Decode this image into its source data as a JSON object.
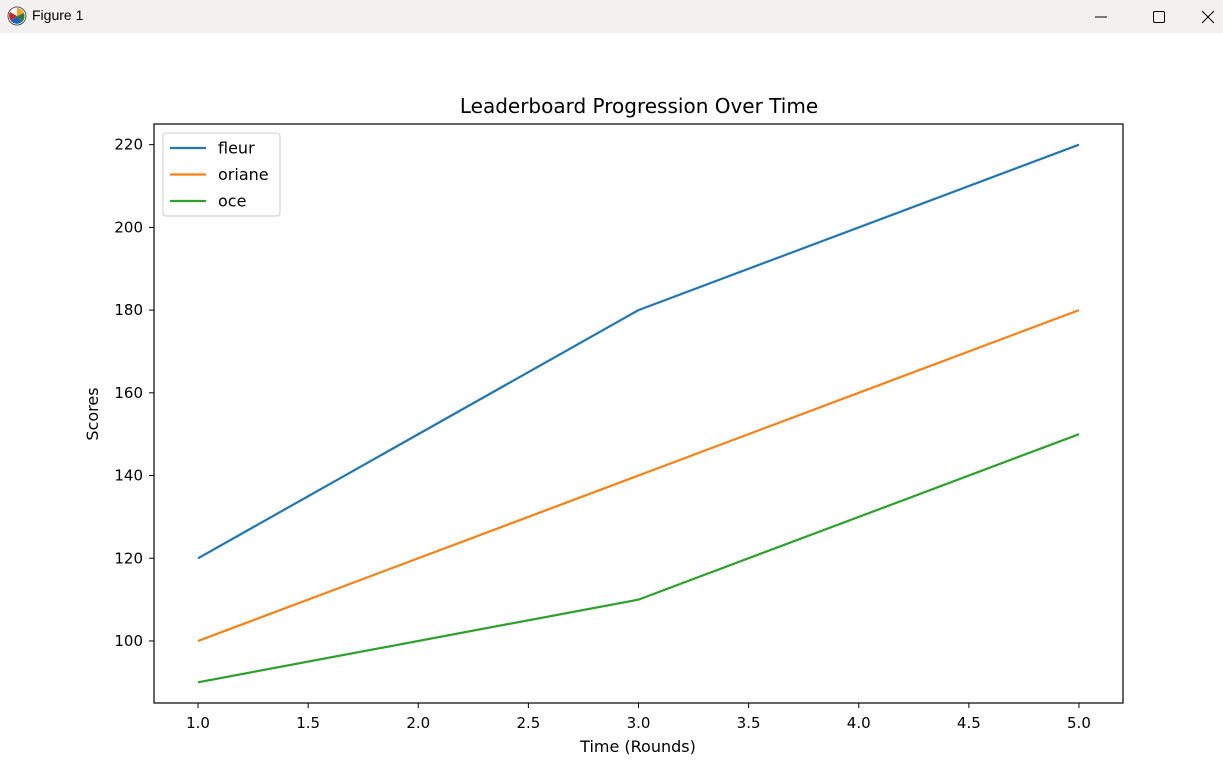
{
  "window": {
    "title": "Figure 1",
    "icons": {
      "app": "matplotlib-icon",
      "minimize": "minimize-icon",
      "maximize": "maximize-icon",
      "close": "close-icon"
    }
  },
  "chart_data": {
    "type": "line",
    "title": "Leaderboard Progression Over Time",
    "xlabel": "Time (Rounds)",
    "ylabel": "Scores",
    "x": [
      1,
      3,
      5
    ],
    "xlim": [
      0.8,
      5.2
    ],
    "ylim": [
      85,
      225
    ],
    "xticks": [
      1.0,
      1.5,
      2.0,
      2.5,
      3.0,
      3.5,
      4.0,
      4.5,
      5.0
    ],
    "xtick_labels": [
      "1.0",
      "1.5",
      "2.0",
      "2.5",
      "3.0",
      "3.5",
      "4.0",
      "4.5",
      "5.0"
    ],
    "yticks": [
      100,
      120,
      140,
      160,
      180,
      200,
      220
    ],
    "ytick_labels": [
      "100",
      "120",
      "140",
      "160",
      "180",
      "200",
      "220"
    ],
    "grid": false,
    "legend_position": "upper-left",
    "series": [
      {
        "name": "fleur",
        "color": "#1f77b4",
        "values": [
          120,
          180,
          220
        ]
      },
      {
        "name": "oriane",
        "color": "#ff7f0e",
        "values": [
          100,
          140,
          180
        ]
      },
      {
        "name": "oce",
        "color": "#2ca02c",
        "values": [
          90,
          110,
          150
        ]
      }
    ]
  }
}
